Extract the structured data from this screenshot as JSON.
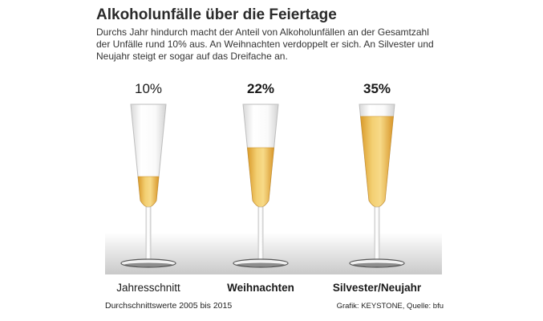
{
  "header": {
    "title": "Alkoholunfälle über die Feiertage",
    "subtitle": "Durchs Jahr hindurch macht der Anteil von Alkoholunfällen an der Gesamtzahl der Unfälle rund 10% aus. An Weihnachten verdoppelt er sich. An Silvester und Neujahr steigt er sogar auf das Dreifache an."
  },
  "footer": {
    "note": "Durchschnittswerte 2005 bis 2015",
    "credit": "Grafik: KEYSTONE, Quelle: bfu"
  },
  "colors": {
    "liquid": "#eab94a",
    "liquid_light": "#f6dc92",
    "glass": "#e9e9e9",
    "floor": "#d4d4d4"
  },
  "chart_data": {
    "type": "bar",
    "categories": [
      "Jahresschnitt",
      "Weihnachten",
      "Silvester/Neujahr"
    ],
    "values": [
      10,
      22,
      35
    ],
    "value_labels": [
      "10%",
      "22%",
      "35%"
    ],
    "unit": "%"
  }
}
